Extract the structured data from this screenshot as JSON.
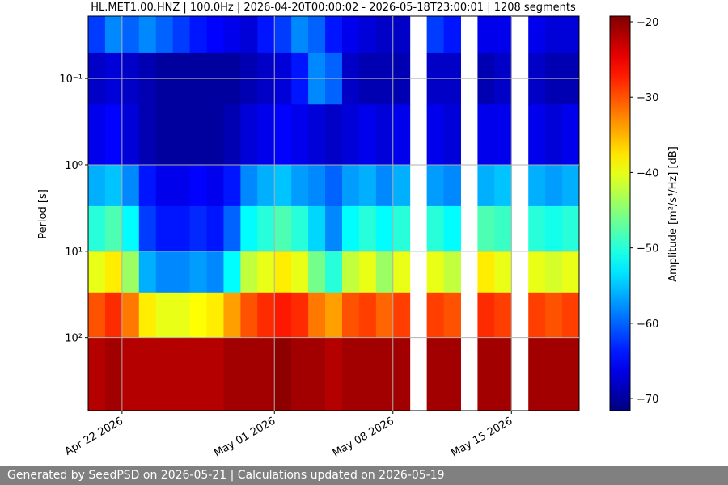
{
  "chart_data": {
    "type": "spectrogram",
    "title": "HL.MET1.00.HNZ | 100.0Hz | 2026-04-20T00:00:02 - 2026-05-18T23:00:01 | 1208 segments",
    "y_label": "Period [s]",
    "colorbar_label": "Amplitude [m²/s⁴/Hz] [dB]",
    "colormap": "jet",
    "y_log": true,
    "y_inverted": true,
    "grid": true,
    "x": [
      "2026-04-20",
      "2026-04-21",
      "2026-04-22",
      "2026-04-23",
      "2026-04-24",
      "2026-04-25",
      "2026-04-26",
      "2026-04-27",
      "2026-04-28",
      "2026-04-29",
      "2026-04-30",
      "2026-05-01",
      "2026-05-02",
      "2026-05-03",
      "2026-05-04",
      "2026-05-05",
      "2026-05-06",
      "2026-05-07",
      "2026-05-08",
      "2026-05-09",
      "2026-05-10",
      "2026-05-11",
      "2026-05-12",
      "2026-05-13",
      "2026-05-14",
      "2026-05-15",
      "2026-05-16",
      "2026-05-17",
      "2026-05-18"
    ],
    "xlim": [
      "2026-04-20",
      "2026-05-19"
    ],
    "xticks": [
      {
        "value": "2026-04-22",
        "label": "Apr 22 2026"
      },
      {
        "value": "2026-05-01",
        "label": "May 01 2026"
      },
      {
        "value": "2026-05-08",
        "label": "May 08 2026"
      },
      {
        "value": "2026-05-15",
        "label": "May 15 2026"
      }
    ],
    "period_bins": [
      0.019,
      0.05,
      0.2,
      1,
      3,
      10,
      30,
      100,
      700
    ],
    "ylim": [
      0.019,
      700
    ],
    "yticks": [
      {
        "value": 0.1,
        "label": "10⁻¹"
      },
      {
        "value": 1,
        "label": "10⁰"
      },
      {
        "value": 10,
        "label": "10¹"
      },
      {
        "value": 100,
        "label": "10²"
      }
    ],
    "clim": [
      -71.6,
      -19.25
    ],
    "cticks": [
      {
        "value": -20,
        "label": "−20"
      },
      {
        "value": -30,
        "label": "−30"
      },
      {
        "value": -40,
        "label": "−40"
      },
      {
        "value": -50,
        "label": "−50"
      },
      {
        "value": -60,
        "label": "−60"
      },
      {
        "value": -70,
        "label": "−70"
      }
    ],
    "z": [
      [
        -62,
        -58,
        -60,
        -58,
        -60,
        -62,
        -64,
        -65,
        -66,
        -67,
        -64,
        -62,
        -58,
        -60,
        -64,
        -66,
        -67,
        -68,
        -68,
        null,
        -62,
        -64,
        null,
        -66,
        -66,
        null,
        -66,
        -67,
        -67
      ],
      [
        -68,
        -67,
        -68,
        -69,
        -70,
        -70,
        -70,
        -70,
        -70,
        -69,
        -68,
        -67,
        -64,
        -58,
        -60,
        -68,
        -69,
        -69,
        -69,
        null,
        -68,
        -68,
        null,
        -69,
        -68,
        null,
        -68,
        -69,
        -69
      ],
      [
        -66,
        -65,
        -67,
        -69,
        -70,
        -70,
        -70,
        -70,
        -69,
        -67,
        -66,
        -65,
        -66,
        -67,
        -68,
        -67,
        -66,
        -67,
        -66,
        null,
        -66,
        -67,
        null,
        -66,
        -66,
        null,
        -66,
        -67,
        -66
      ],
      [
        -56,
        -55,
        -58,
        -64,
        -66,
        -66,
        -65,
        -66,
        -64,
        -58,
        -56,
        -55,
        -57,
        -58,
        -60,
        -57,
        -56,
        -58,
        -56,
        null,
        -57,
        -58,
        null,
        -56,
        -55,
        null,
        -56,
        -57,
        -56
      ],
      [
        -50,
        -48,
        -52,
        -62,
        -64,
        -64,
        -63,
        -64,
        -60,
        -52,
        -50,
        -48,
        -50,
        -54,
        -58,
        -52,
        -50,
        -52,
        -50,
        null,
        -50,
        -52,
        null,
        -48,
        -49,
        null,
        -50,
        -51,
        -50
      ],
      [
        -40,
        -38,
        -44,
        -56,
        -58,
        -58,
        -57,
        -58,
        -52,
        -42,
        -40,
        -38,
        -40,
        -46,
        -50,
        -42,
        -40,
        -44,
        -40,
        null,
        -40,
        -42,
        null,
        -38,
        -40,
        null,
        -40,
        -41,
        -40
      ],
      [
        -30,
        -28,
        -32,
        -38,
        -40,
        -40,
        -39,
        -38,
        -34,
        -30,
        -28,
        -27,
        -28,
        -32,
        -34,
        -30,
        -29,
        -31,
        -29,
        null,
        -29,
        -30,
        null,
        -28,
        -29,
        null,
        -29,
        -30,
        -29
      ],
      [
        -22,
        -21,
        -22,
        -22,
        -22,
        -22,
        -22,
        -22,
        -21,
        -21,
        -21,
        -20,
        -21,
        -21,
        -22,
        -21,
        -21,
        -21,
        -21,
        null,
        -21,
        -21,
        null,
        -21,
        -21,
        null,
        -21,
        -21,
        -21
      ]
    ]
  },
  "footer": "Generated by SeedPSD on 2026-05-21 | Calculations updated on 2026-05-19"
}
